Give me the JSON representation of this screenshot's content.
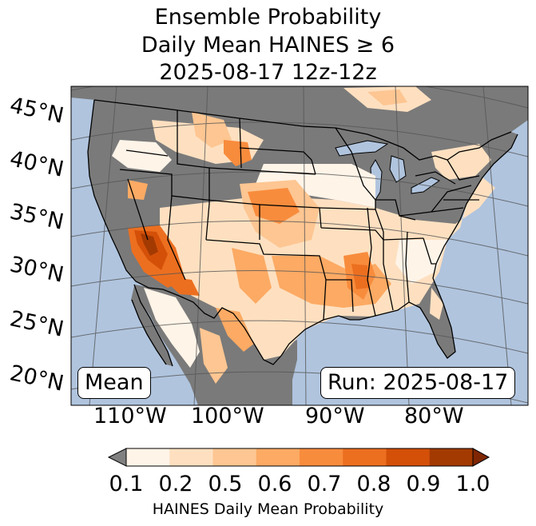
{
  "title": {
    "line1": "Ensemble Probability",
    "line2": "Daily Mean HAINES ≥ 6",
    "line3": "2025-08-17 12z-12z"
  },
  "latitude_labels": [
    "45°N",
    "40°N",
    "35°N",
    "30°N",
    "25°N",
    "20°N"
  ],
  "longitude_labels": [
    "110°W",
    "100°W",
    "90°W",
    "80°W"
  ],
  "annotations": {
    "mean_box": "Mean",
    "run_box": "Run: 2025-08-17"
  },
  "colorbar": {
    "ticks": [
      "0.1",
      "0.2",
      "0.5",
      "0.6",
      "0.7",
      "0.8",
      "0.9",
      "1.0"
    ],
    "label": "HAINES Daily Mean Probability",
    "colors": [
      "#fff4e8",
      "#fee0c0",
      "#fdc692",
      "#fcaa64",
      "#f88c3d",
      "#ec6f20",
      "#d45009",
      "#a33a02"
    ],
    "under_color": "#808080",
    "over_color": "#7f2704"
  },
  "colors": {
    "ocean": "#b0c4de",
    "land_below_threshold": "#7a7a7a"
  }
}
